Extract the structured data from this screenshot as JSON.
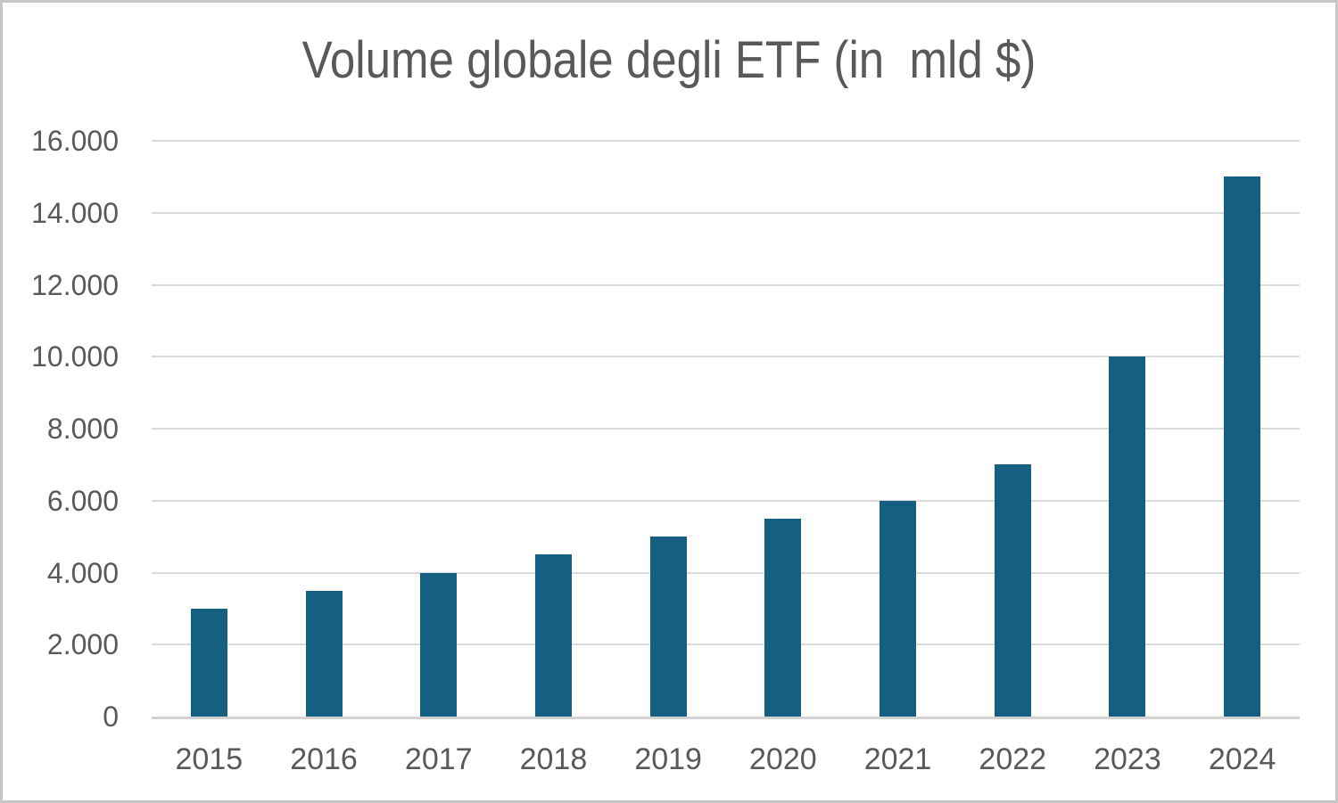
{
  "frame": {
    "background": "#ffffff",
    "border_color": "#c6c6c6"
  },
  "chart_data": {
    "type": "bar",
    "title": "Volume globale degli ETF (in  mld $)",
    "categories": [
      "2015",
      "2016",
      "2017",
      "2018",
      "2019",
      "2020",
      "2021",
      "2022",
      "2023",
      "2024"
    ],
    "values": [
      3000,
      3500,
      4000,
      4500,
      5000,
      5500,
      6000,
      7000,
      10000,
      15000
    ],
    "xlabel": "",
    "ylabel": "",
    "ylim": [
      0,
      16000
    ],
    "yticks": {
      "values": [
        0,
        2000,
        4000,
        6000,
        8000,
        10000,
        12000,
        14000,
        16000
      ],
      "labels": [
        "0",
        "2.000",
        "4.000",
        "6.000",
        "8.000",
        "10.000",
        "12.000",
        "14.000",
        "16.000"
      ]
    },
    "legend": "none",
    "grid": "horizontal",
    "colors": {
      "bar": "#156082",
      "text": "#595959",
      "gridline": "#dadada",
      "axis_line": "#d2d2d2"
    }
  }
}
